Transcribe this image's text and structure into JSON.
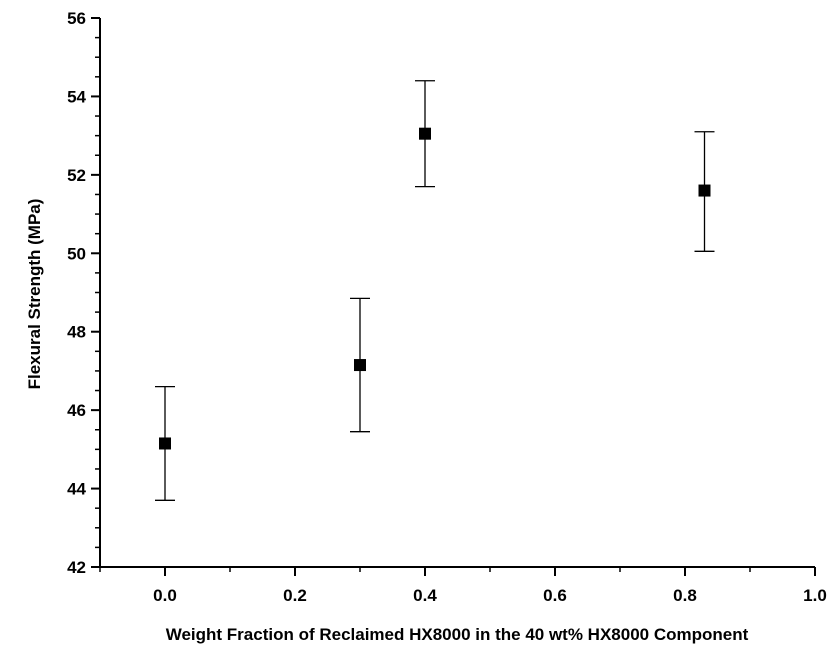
{
  "chart_data": {
    "type": "scatter",
    "title": "",
    "xlabel": "Weight Fraction of Reclaimed HX8000 in the 40 wt% HX8000 Component",
    "ylabel": "Flexural Strength (MPa)",
    "xlim": [
      -0.1,
      1.0
    ],
    "ylim": [
      42,
      56
    ],
    "x_ticks": [
      0.0,
      0.2,
      0.4,
      0.6,
      0.8,
      1.0
    ],
    "x_tick_labels": [
      "0.0",
      "0.2",
      "0.4",
      "0.6",
      "0.8",
      "1.0"
    ],
    "y_ticks": [
      42,
      44,
      46,
      48,
      50,
      52,
      54,
      56
    ],
    "y_tick_labels": [
      "42",
      "44",
      "46",
      "48",
      "50",
      "52",
      "54",
      "56"
    ],
    "grid": false,
    "legend": "none",
    "series": [
      {
        "marker": "square",
        "color": "#000000",
        "points": [
          {
            "x": 0.0,
            "y": 45.15,
            "err_low": 43.7,
            "err_high": 46.6
          },
          {
            "x": 0.3,
            "y": 47.15,
            "err_low": 45.45,
            "err_high": 48.85
          },
          {
            "x": 0.4,
            "y": 53.05,
            "err_low": 51.7,
            "err_high": 54.4
          },
          {
            "x": 0.83,
            "y": 51.6,
            "err_low": 50.05,
            "err_high": 53.1
          }
        ]
      }
    ]
  }
}
